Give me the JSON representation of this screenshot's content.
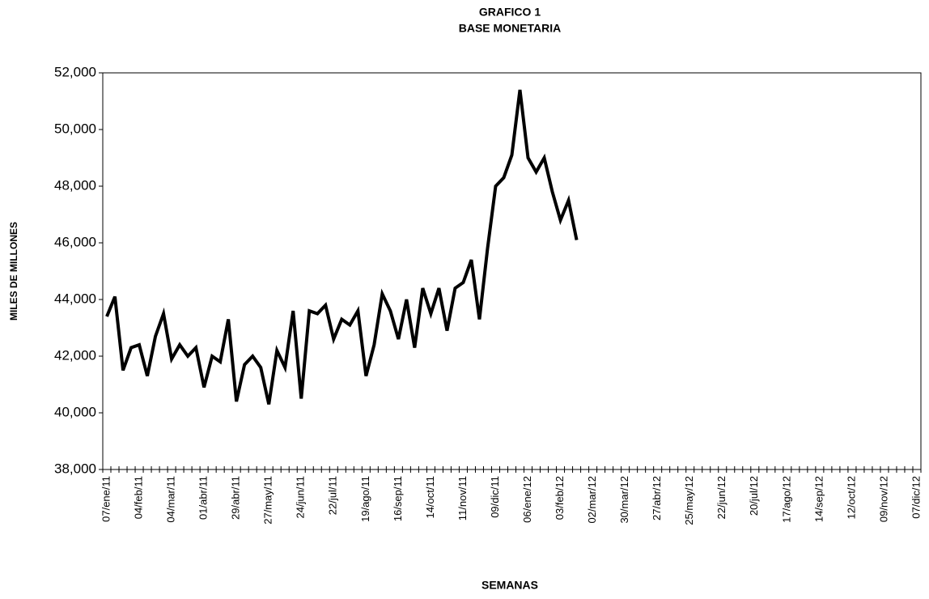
{
  "chart_data": {
    "type": "line",
    "title": "GRAFICO 1",
    "subtitle": "BASE MONETARIA",
    "x_label": "SEMANAS",
    "y_label": "MILES DE MILLONES",
    "categories": [
      "07/ene/11",
      null,
      null,
      null,
      "04/feb/11",
      null,
      null,
      null,
      "04/mar/11",
      null,
      null,
      null,
      "01/abr/11",
      null,
      null,
      null,
      "29/abr/11",
      null,
      null,
      null,
      "27/may/11",
      null,
      null,
      null,
      "24/jun/11",
      null,
      null,
      null,
      "22/jul/11",
      null,
      null,
      null,
      "19/ago/11",
      null,
      null,
      null,
      "16/sep/11",
      null,
      null,
      null,
      "14/oct/11",
      null,
      null,
      null,
      "11/nov/11",
      null,
      null,
      null,
      "09/dic/11",
      null,
      null,
      null,
      "06/ene/12",
      null,
      null,
      null,
      "03/feb/12",
      null,
      null,
      null,
      "02/mar/12",
      null,
      null,
      null,
      "30/mar/12",
      null,
      null,
      null,
      "27/abr/12",
      null,
      null,
      null,
      "25/may/12",
      null,
      null,
      null,
      "22/jun/12",
      null,
      null,
      null,
      "20/jul/12",
      null,
      null,
      null,
      "17/ago/12",
      null,
      null,
      null,
      "14/sep/12",
      null,
      null,
      null,
      "12/oct/12",
      null,
      null,
      null,
      "09/nov/12",
      null,
      null,
      null,
      "07/dic/12"
    ],
    "series": [
      {
        "color": "#000000",
        "values": [
          43400,
          44100,
          41500,
          42300,
          42400,
          41300,
          42700,
          43500,
          41900,
          42400,
          42000,
          42300,
          40900,
          42000,
          41800,
          43300,
          40400,
          41700,
          42000,
          41600,
          40300,
          42200,
          41600,
          43600,
          40500,
          43600,
          43500,
          43800,
          42600,
          43300,
          43100,
          43600,
          41300,
          42400,
          44200,
          43600,
          42600,
          44000,
          42300,
          44400,
          43500,
          44400,
          42900,
          44400,
          44600,
          45400,
          43300,
          45800,
          48000,
          48300,
          49100,
          51400,
          49000,
          48500,
          49000,
          47800,
          46800,
          47500,
          46100,
          null,
          null,
          null,
          null,
          null,
          null,
          null,
          null,
          null,
          null,
          null,
          null,
          null,
          null,
          null,
          null,
          null,
          null,
          null,
          null,
          null,
          null,
          null,
          null,
          null,
          null,
          null,
          null,
          null,
          null,
          null,
          null,
          null,
          null,
          null,
          null,
          null,
          null,
          null,
          null,
          null,
          null
        ]
      }
    ],
    "ylim": [
      38000,
      52000
    ],
    "yticks": [
      {
        "value": 38000,
        "label": "38,000"
      },
      {
        "value": 40000,
        "label": "40,000"
      },
      {
        "value": 42000,
        "label": "42,000"
      },
      {
        "value": 44000,
        "label": "44,000"
      },
      {
        "value": 46000,
        "label": "46,000"
      },
      {
        "value": 48000,
        "label": "48,000"
      },
      {
        "value": 50000,
        "label": "50,000"
      },
      {
        "value": 52000,
        "label": "52,000"
      }
    ],
    "grid": false
  }
}
